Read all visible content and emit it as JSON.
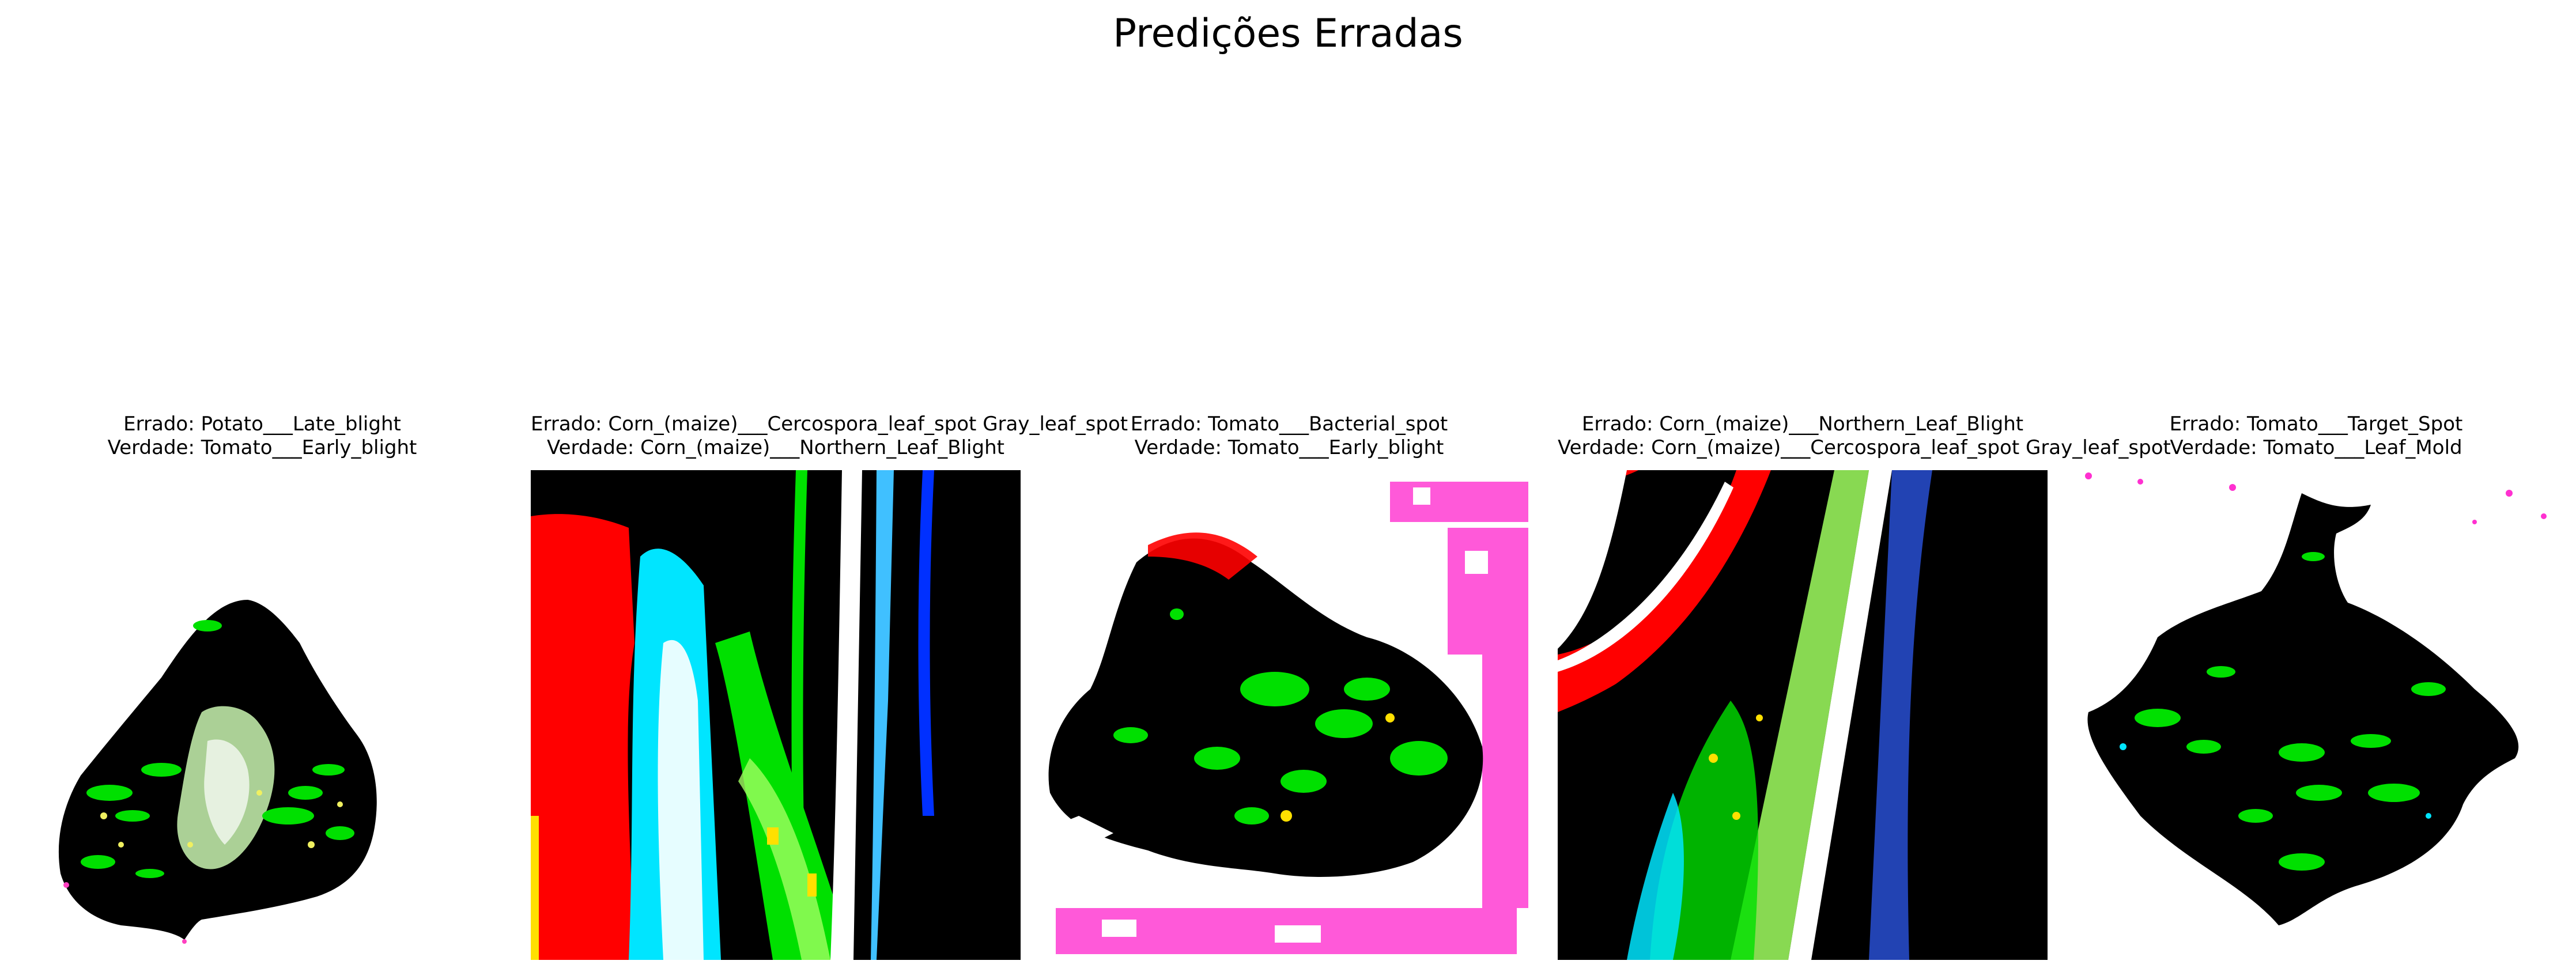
{
  "title": "Predições Erradas",
  "panels": [
    {
      "wrong_label": "Errado: Potato___Late_blight",
      "true_label": "Verdade: Tomato___Early_blight"
    },
    {
      "wrong_label": "Errado: Corn_(maize)___Cercospora_leaf_spot Gray_leaf_spot",
      "true_label": "Verdade: Corn_(maize)___Northern_Leaf_Blight"
    },
    {
      "wrong_label": "Errado: Tomato___Bacterial_spot",
      "true_label": "Verdade: Tomato___Early_blight"
    },
    {
      "wrong_label": "Errado: Corn_(maize)___Northern_Leaf_Blight",
      "true_label": "Verdade: Corn_(maize)___Cercospora_leaf_spot Gray_leaf_spot"
    },
    {
      "wrong_label": "Errado: Tomato___Target_Spot",
      "true_label": "Verdade: Tomato___Leaf_Mold"
    }
  ]
}
